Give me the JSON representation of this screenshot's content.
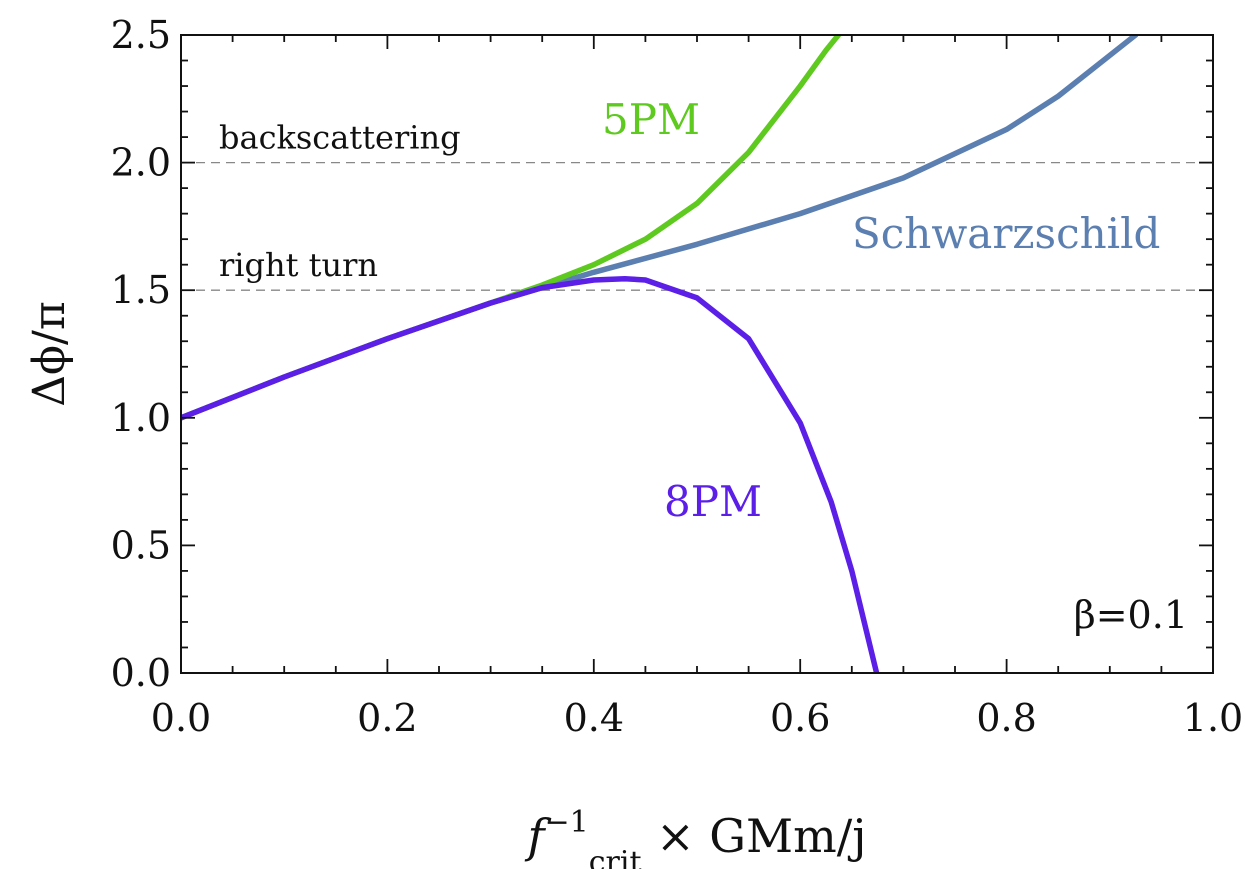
{
  "chart_data": {
    "type": "line",
    "xlim": [
      0.0,
      1.0
    ],
    "ylim": [
      0.0,
      2.5
    ],
    "xticks": [
      "0.0",
      "0.2",
      "0.4",
      "0.6",
      "0.8",
      "1.0"
    ],
    "yticks": [
      "0.0",
      "0.5",
      "1.0",
      "1.5",
      "2.0",
      "2.5"
    ],
    "xlabel": {
      "f": "f",
      "sup": "−1",
      "sub": "crit",
      "rest": " × GMm/j"
    },
    "ylabel": "Δϕ/π",
    "grid": false,
    "reference_lines": [
      {
        "y": 2.0,
        "label": "backscattering"
      },
      {
        "y": 1.5,
        "label": "right turn"
      }
    ],
    "annotation": "β=0.1",
    "series": [
      {
        "name": "Schwarzschild",
        "color": "#5b7fb0",
        "x": [
          0.0,
          0.1,
          0.2,
          0.3,
          0.4,
          0.5,
          0.6,
          0.7,
          0.8,
          0.85,
          0.9,
          0.925
        ],
        "y": [
          1.0,
          1.16,
          1.31,
          1.45,
          1.57,
          1.68,
          1.8,
          1.94,
          2.13,
          2.26,
          2.42,
          2.5
        ]
      },
      {
        "name": "5PM",
        "color": "#5ec91e",
        "x": [
          0.0,
          0.1,
          0.2,
          0.3,
          0.35,
          0.4,
          0.45,
          0.5,
          0.55,
          0.6,
          0.625,
          0.637
        ],
        "y": [
          1.0,
          1.16,
          1.31,
          1.45,
          1.52,
          1.6,
          1.7,
          1.84,
          2.04,
          2.3,
          2.44,
          2.5
        ]
      },
      {
        "name": "8PM",
        "color": "#5b1fe8",
        "x": [
          0.0,
          0.1,
          0.2,
          0.3,
          0.35,
          0.4,
          0.43,
          0.45,
          0.5,
          0.55,
          0.6,
          0.63,
          0.65,
          0.674
        ],
        "y": [
          1.0,
          1.16,
          1.31,
          1.45,
          1.51,
          1.54,
          1.545,
          1.54,
          1.47,
          1.31,
          0.98,
          0.67,
          0.4,
          0.0
        ]
      }
    ]
  }
}
